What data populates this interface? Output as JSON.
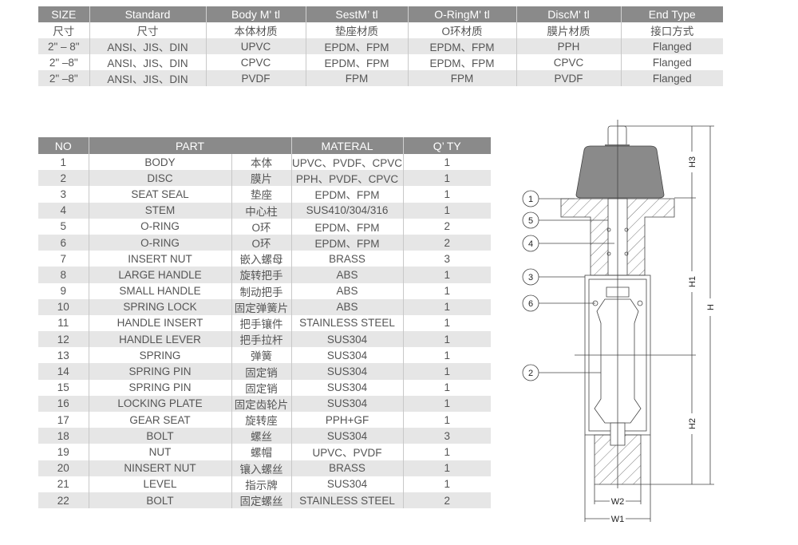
{
  "spec_table": {
    "headers": [
      "SIZE",
      "Standard",
      "Body M' tl",
      "SestM’ tl",
      "O-RingM' tl",
      "DiscM' tl",
      "End Type"
    ],
    "rows": [
      [
        "尺寸",
        "尺寸",
        "本体材质",
        "垫座材质",
        "O环材质",
        "膜片材质",
        "接口方式"
      ],
      [
        "2\" – 8\"",
        "ANSI、JIS、DIN",
        "UPVC",
        "EPDM、FPM",
        "EPDM、FPM",
        "PPH",
        "Flanged"
      ],
      [
        "2\" –8\"",
        "ANSI、JIS、DIN",
        "CPVC",
        "EPDM、FPM",
        "EPDM、FPM",
        "CPVC",
        "Flanged"
      ],
      [
        "2\" –8\"",
        "ANSI、JIS、DIN",
        "PVDF",
        "FPM",
        "FPM",
        "PVDF",
        "Flanged"
      ]
    ]
  },
  "parts_table": {
    "headers": [
      "NO",
      "PART",
      "MATERAL",
      "Q’ TY"
    ],
    "rows": [
      [
        "1",
        "BODY",
        "本体",
        "UPVC、PVDF、CPVC",
        "1"
      ],
      [
        "2",
        "DISC",
        "膜片",
        "PPH、PVDF、CPVC",
        "1"
      ],
      [
        "3",
        "SEAT SEAL",
        "垫座",
        "EPDM、FPM",
        "1"
      ],
      [
        "4",
        "STEM",
        "中心柱",
        "SUS410/304/316",
        "1"
      ],
      [
        "5",
        "O-RING",
        "O环",
        "EPDM、FPM",
        "2"
      ],
      [
        "6",
        "O-RING",
        "O环",
        "EPDM、FPM",
        "2"
      ],
      [
        "7",
        "INSERT NUT",
        "嵌入螺母",
        "BRASS",
        "3"
      ],
      [
        "8",
        "LARGE HANDLE",
        "旋转把手",
        "ABS",
        "1"
      ],
      [
        "9",
        "SMALL HANDLE",
        "制动把手",
        "ABS",
        "1"
      ],
      [
        "10",
        "SPRING LOCK",
        "固定弹簧片",
        "ABS",
        "1"
      ],
      [
        "11",
        "HANDLE INSERT",
        "把手镶件",
        "STAINLESS STEEL",
        "1"
      ],
      [
        "12",
        "HANDLE LEVER",
        "把手拉杆",
        "SUS304",
        "1"
      ],
      [
        "13",
        "SPRING",
        "弹簧",
        "SUS304",
        "1"
      ],
      [
        "14",
        "SPRING PIN",
        "固定销",
        "SUS304",
        "1"
      ],
      [
        "15",
        "SPRING PIN",
        "固定销",
        "SUS304",
        "1"
      ],
      [
        "16",
        "LOCKING PLATE",
        "固定齿轮片",
        "SUS304",
        "1"
      ],
      [
        "17",
        "GEAR SEAT",
        "旋转座",
        "PPH+GF",
        "1"
      ],
      [
        "18",
        "BOLT",
        "螺丝",
        "SUS304",
        "3"
      ],
      [
        "19",
        "NUT",
        "螺帽",
        "UPVC、PVDF",
        "1"
      ],
      [
        "20",
        "NINSERT NUT",
        "镶入螺丝",
        "BRASS",
        "1"
      ],
      [
        "21",
        "LEVEL",
        "指示牌",
        "SUS304",
        "1"
      ],
      [
        "22",
        "BOLT",
        "固定螺丝",
        "STAINLESS STEEL",
        "2"
      ]
    ]
  },
  "drawing": {
    "callouts": [
      "1",
      "5",
      "4",
      "3",
      "6",
      "2"
    ],
    "dimensions": {
      "h3": "H3",
      "h1": "H1",
      "h2": "H2",
      "h": "H",
      "w2": "W2",
      "w1": "W1"
    }
  }
}
